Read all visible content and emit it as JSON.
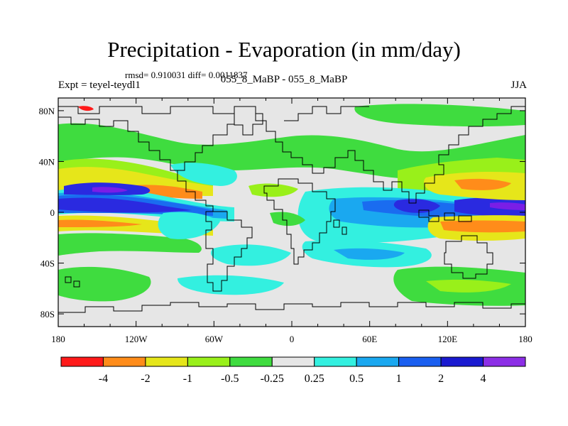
{
  "figure": {
    "title": "Precipitation - Evaporation (in mm/day)",
    "stats": "rmsd= 0.910031 diff= 0.0011837",
    "left_label": "Expt = teyel-teydl1",
    "center_label": "055_8_MaBP - 055_8_MaBP",
    "right_label": "JJA"
  },
  "map": {
    "lon_ticks": [
      "180",
      "120W",
      "60W",
      "0",
      "60E",
      "120E",
      "180"
    ],
    "lat_ticks": [
      "80N",
      "40N",
      "0",
      "40S",
      "80S"
    ]
  },
  "colorbar": {
    "labels": [
      "-4",
      "-2",
      "-1",
      "-0.5",
      "-0.25",
      "0.25",
      "0.5",
      "1",
      "2",
      "4"
    ],
    "colors": [
      "#ff1a1a",
      "#ff8c1a",
      "#e6e61a",
      "#99f01a",
      "#3fdc3f",
      "#e6e6e6",
      "#33f0e0",
      "#1aa8f0",
      "#1a5ff0",
      "#1a1ad0",
      "#8c2ee6"
    ]
  },
  "palette": {
    "background": "#e6e6e6",
    "strong_wet": "#2a2ae0",
    "very_strong_wet": "#7a1ee6",
    "wet": "#1a6cf0",
    "mild_wet": "#1aa8f0",
    "weak_wet": "#33f0e0",
    "weak_dry": "#3fdc3f",
    "mild_dry": "#99f01a",
    "dry": "#e6e61a",
    "strong_dry": "#ff8c1a",
    "very_strong_dry": "#ff1a1a"
  }
}
